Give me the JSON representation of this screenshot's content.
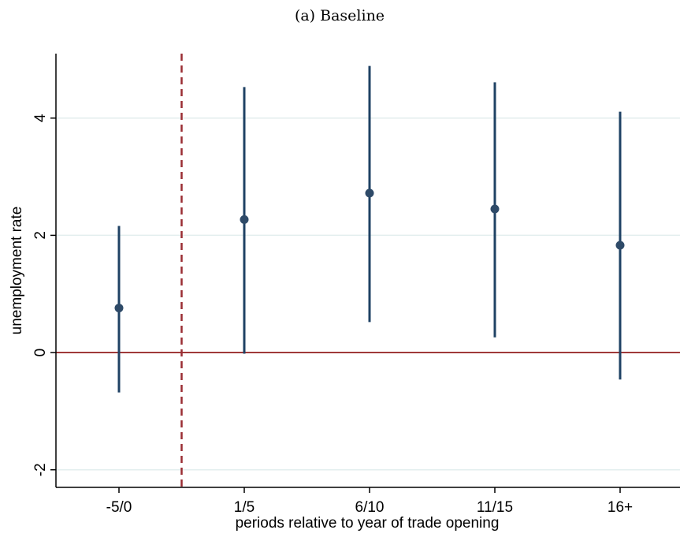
{
  "chart_data": {
    "type": "scatter",
    "title": "(a) Baseline",
    "xlabel": "periods relative to year of trade opening",
    "ylabel": "unemployment rate",
    "categories": [
      "-5/0",
      "1/5",
      "6/10",
      "11/15",
      "16+"
    ],
    "series": [
      {
        "estimates": [
          0.76,
          2.27,
          2.72,
          2.45,
          1.83
        ],
        "ci_lower": [
          -0.68,
          -0.02,
          0.52,
          0.26,
          -0.46
        ],
        "ci_upper": [
          2.16,
          4.53,
          4.89,
          4.61,
          4.11
        ]
      }
    ],
    "ylim": [
      -2.3,
      5.1
    ],
    "yticks": [
      -2,
      0,
      2,
      4
    ],
    "grid": "horizontal",
    "reference_lines": {
      "horizontal_at_y": 0,
      "vertical_between_categories": [
        "-5/0",
        "1/5"
      ]
    },
    "colors": {
      "marker": "#2e4a68",
      "ci_line": "#1f4264",
      "zero_line": "#a03a3a",
      "vline": "#9a2e34",
      "grid": "#e3eeee"
    }
  }
}
